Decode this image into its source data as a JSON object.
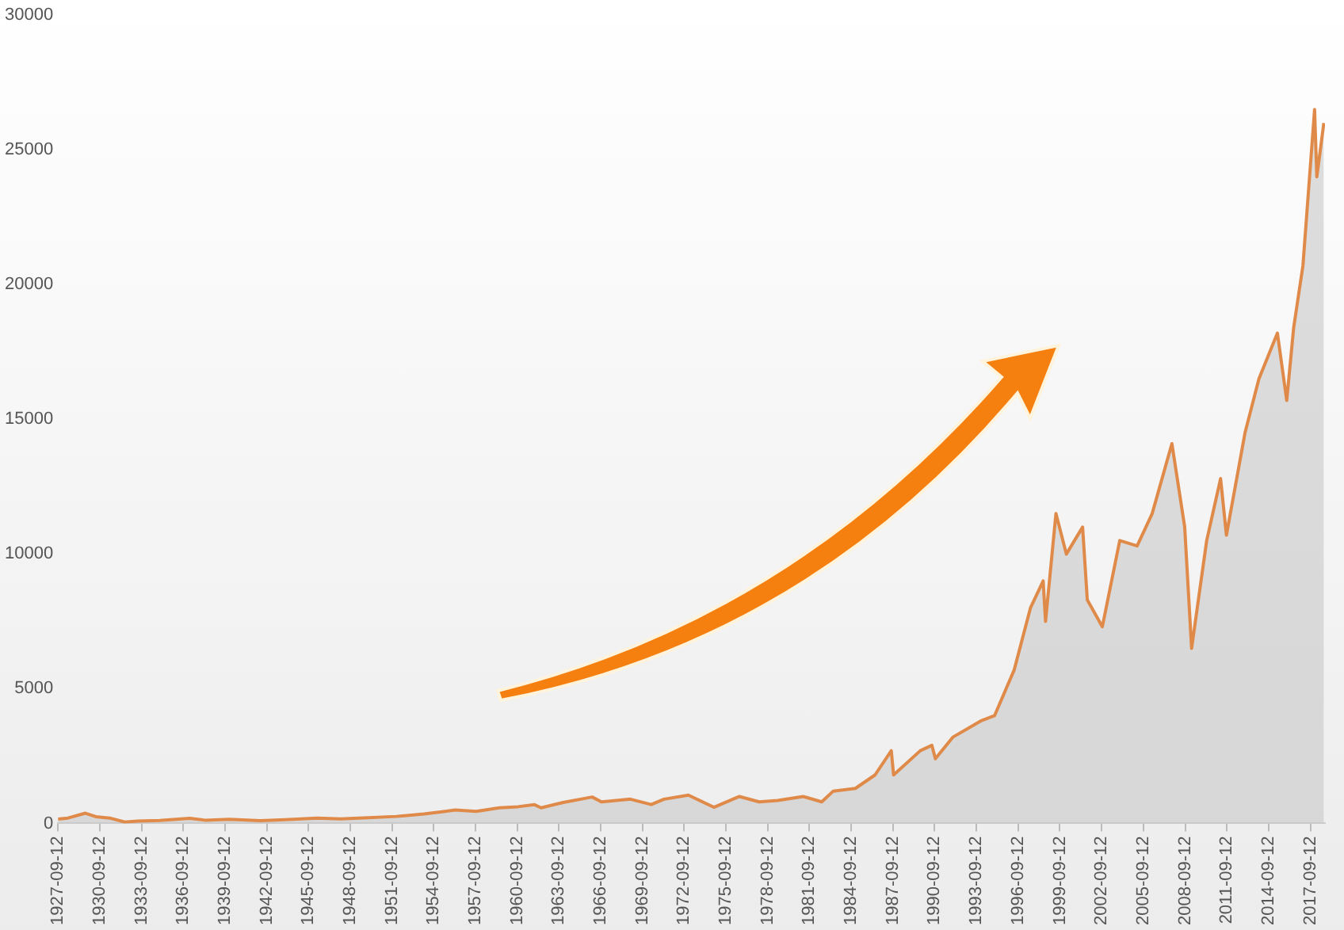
{
  "chart_data": {
    "type": "area",
    "x": [
      "1927-09-12",
      "1928-06",
      "1929-09",
      "1930-06",
      "1931-06",
      "1932-07",
      "1933-06",
      "1935-01",
      "1937-03",
      "1938-04",
      "1940-01",
      "1942-04",
      "1944-01",
      "1946-05",
      "1948-01",
      "1950-01",
      "1952-01",
      "1954-01",
      "1955-06",
      "1956-04",
      "1957-10",
      "1959-06",
      "1960-10",
      "1961-12",
      "1962-06",
      "1964-01",
      "1966-02",
      "1966-10",
      "1968-11",
      "1970-05",
      "1971-04",
      "1973-01",
      "1974-11",
      "1976-09",
      "1978-02",
      "1979-06",
      "1981-04",
      "1982-08",
      "1983-06",
      "1985-01",
      "1986-06",
      "1987-08",
      "1987-10",
      "1989-09",
      "1990-07",
      "1990-10",
      "1992-01",
      "1994-01",
      "1995-01",
      "1996-06",
      "1997-08",
      "1998-07",
      "1998-09",
      "1999-06",
      "2000-03",
      "2001-05",
      "2001-09",
      "2002-10",
      "2004-01",
      "2005-04",
      "2006-05",
      "2007-10",
      "2008-09",
      "2009-03",
      "2010-04",
      "2011-04",
      "2011-09",
      "2013-01",
      "2014-01",
      "2015-05",
      "2016-01",
      "2016-07",
      "2017-03",
      "2018-01",
      "2018-03",
      "2018-09"
    ],
    "series": [
      {
        "color": "#e08a4a",
        "values": [
          160,
          200,
          380,
          250,
          200,
          50,
          90,
          110,
          190,
          120,
          150,
          100,
          140,
          200,
          170,
          210,
          260,
          350,
          440,
          500,
          450,
          580,
          620,
          700,
          580,
          780,
          980,
          800,
          900,
          700,
          900,
          1050,
          600,
          1000,
          800,
          850,
          1000,
          800,
          1200,
          1300,
          1800,
          2700,
          1800,
          2700,
          2900,
          2400,
          3200,
          3800,
          4000,
          5700,
          8000,
          9000,
          7500,
          11500,
          10000,
          11000,
          8300,
          7300,
          10500,
          10300,
          11500,
          14100,
          11000,
          6500,
          10500,
          12800,
          10700,
          14500,
          16500,
          18200,
          15700,
          18400,
          20700,
          26500,
          24000,
          26000
        ]
      }
    ],
    "xlim": [
      "1927-09-12",
      "2018-10-01"
    ],
    "xticks": [
      "1927-09-12",
      "1930-09-12",
      "1933-09-12",
      "1936-09-12",
      "1939-09-12",
      "1942-09-12",
      "1945-09-12",
      "1948-09-12",
      "1951-09-12",
      "1954-09-12",
      "1957-09-12",
      "1960-09-12",
      "1963-09-12",
      "1966-09-12",
      "1969-09-12",
      "1972-09-12",
      "1975-09-12",
      "1978-09-12",
      "1981-09-12",
      "1984-09-12",
      "1987-09-12",
      "1990-09-12",
      "1993-09-12",
      "1996-09-12",
      "1999-09-12",
      "2002-09-12",
      "2005-09-12",
      "2008-09-12",
      "2011-09-12",
      "2014-09-12",
      "2017-09-12"
    ],
    "ylim": [
      0,
      30000
    ],
    "yticks": [
      0,
      5000,
      10000,
      15000,
      20000,
      25000,
      30000
    ],
    "grid": false,
    "legend": false,
    "marker": "none",
    "line_style": "solid"
  }
}
